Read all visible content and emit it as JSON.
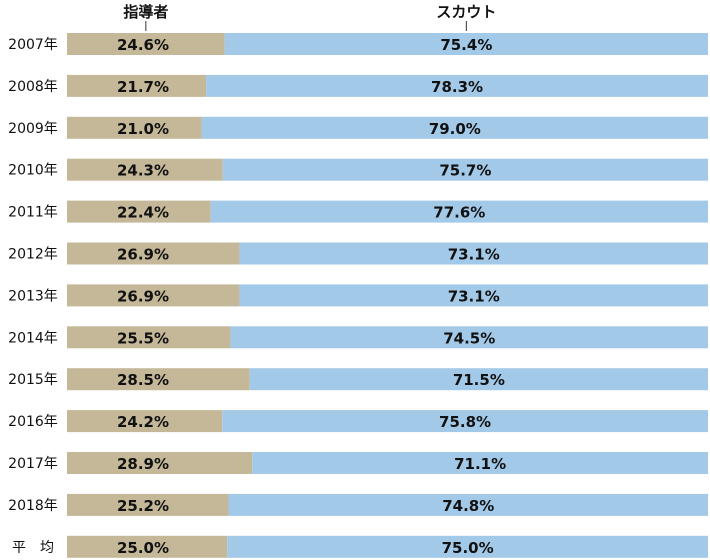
{
  "chart_data": {
    "type": "bar",
    "stacked": true,
    "orientation": "horizontal",
    "percent": true,
    "categories": [
      "2007年",
      "2008年",
      "2009年",
      "2010年",
      "2011年",
      "2012年",
      "2013年",
      "2014年",
      "2015年",
      "2016年",
      "2017年",
      "2018年",
      "平　均"
    ],
    "series": [
      {
        "name": "指導者",
        "color": "#c4b899",
        "values": [
          24.6,
          21.7,
          21.0,
          24.3,
          22.4,
          26.9,
          26.9,
          25.5,
          28.5,
          24.2,
          28.9,
          25.2,
          25.0
        ],
        "labels": [
          "24.6%",
          "21.7%",
          "21.0%",
          "24.3%",
          "22.4%",
          "26.9%",
          "26.9%",
          "25.5%",
          "28.5%",
          "24.2%",
          "28.9%",
          "25.2%",
          "25.0%"
        ]
      },
      {
        "name": "スカウト",
        "color": "#a3c9e8",
        "values": [
          75.4,
          78.3,
          79.0,
          75.7,
          77.6,
          73.1,
          73.1,
          74.5,
          71.5,
          75.8,
          71.1,
          74.8,
          75.0
        ],
        "labels": [
          "75.4%",
          "78.3%",
          "79.0%",
          "75.7%",
          "77.6%",
          "73.1%",
          "73.1%",
          "74.5%",
          "71.5%",
          "75.8%",
          "71.1%",
          "74.8%",
          "75.0%"
        ]
      }
    ],
    "xlim": [
      0,
      100
    ],
    "legend_position": "top",
    "grid": false
  }
}
